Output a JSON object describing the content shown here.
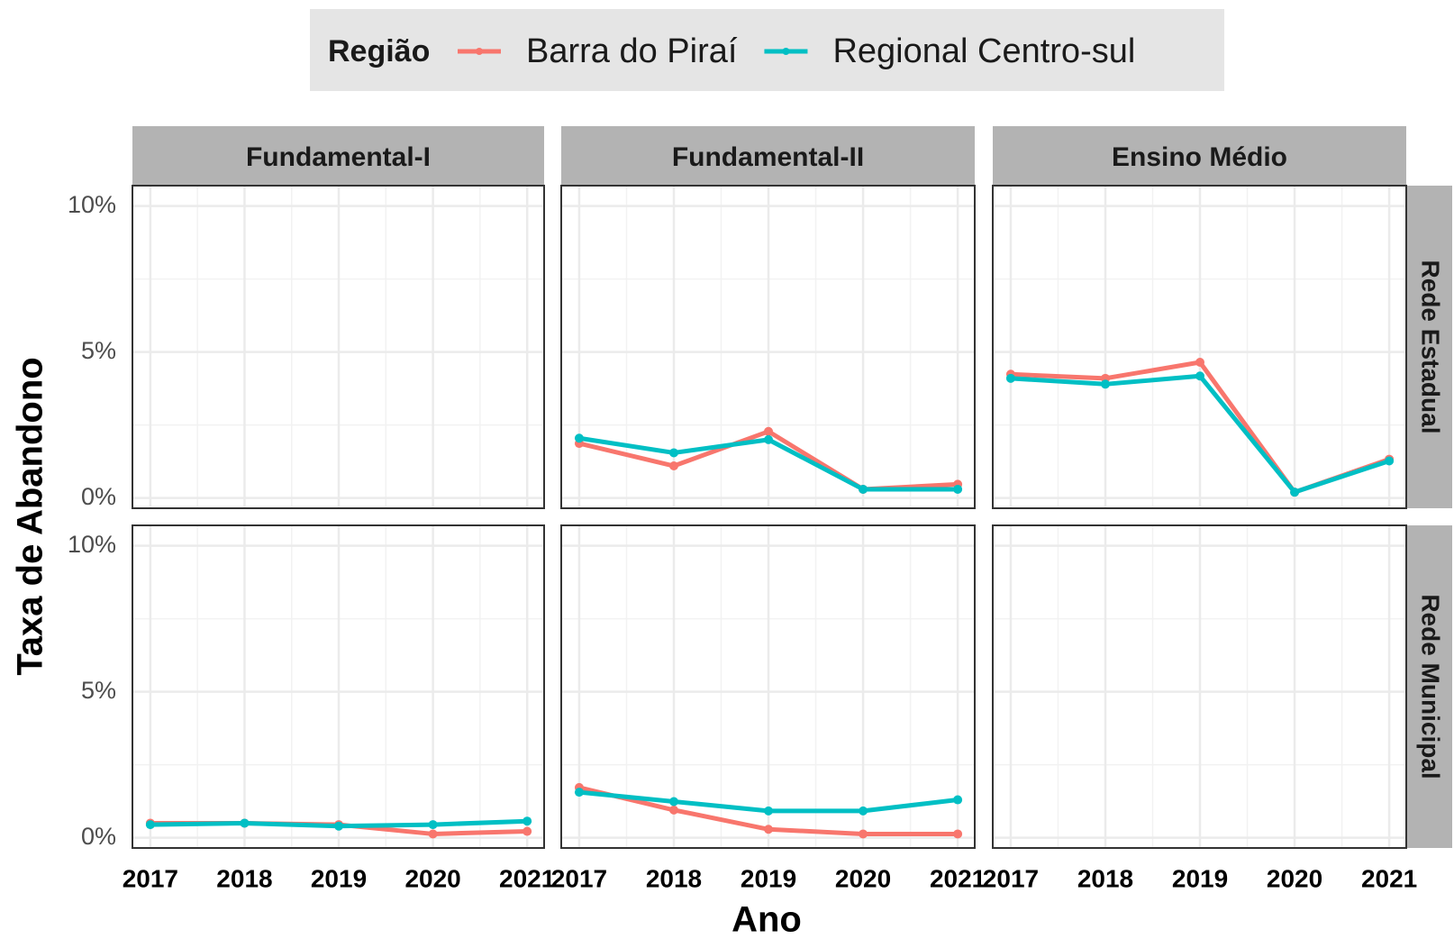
{
  "chart_data": {
    "type": "line",
    "legend_title": "Região",
    "x_label": "Ano",
    "y_label": "Taxa de Abandono",
    "columns": [
      "Fundamental-I",
      "Fundamental-II",
      "Ensino Médio"
    ],
    "rows": [
      "Rede Estadual",
      "Rede Municipal"
    ],
    "series": [
      {
        "name": "Barra do Piraí",
        "color": "#F8766D"
      },
      {
        "name": "Regional Centro-sul",
        "color": "#00BFC4"
      }
    ],
    "x": [
      2017,
      2018,
      2019,
      2020,
      2021
    ],
    "xlim": [
      2016.81,
      2021.18
    ],
    "xticks": [
      2017,
      2018,
      2019,
      2020,
      2021
    ],
    "ylim": [
      -0.35,
      10.7
    ],
    "yticks": [
      {
        "value": 0,
        "label": "0%"
      },
      {
        "value": 5,
        "label": "5%"
      },
      {
        "value": 10,
        "label": "10%"
      }
    ],
    "grid": true,
    "panels": [
      {
        "values": [
          [
            null,
            null,
            null,
            null,
            null
          ],
          [
            null,
            null,
            null,
            null,
            null
          ]
        ]
      },
      {
        "values": [
          [
            1.87,
            1.1,
            2.28,
            0.3,
            0.47
          ],
          [
            2.05,
            1.55,
            2.0,
            0.3,
            0.3
          ]
        ]
      },
      {
        "values": [
          [
            4.24,
            4.1,
            4.65,
            0.2,
            1.33
          ],
          [
            4.1,
            3.9,
            4.18,
            0.2,
            1.27
          ]
        ]
      },
      {
        "values": [
          [
            0.5,
            0.5,
            0.45,
            0.13,
            0.22
          ],
          [
            0.45,
            0.5,
            0.4,
            0.45,
            0.57
          ]
        ]
      },
      {
        "values": [
          [
            1.72,
            0.95,
            0.29,
            0.13,
            0.13
          ],
          [
            1.56,
            1.24,
            0.92,
            0.92,
            1.3
          ]
        ]
      },
      {
        "values": [
          [
            null,
            null,
            null,
            null,
            null
          ],
          [
            null,
            null,
            null,
            null,
            null
          ]
        ]
      }
    ]
  }
}
